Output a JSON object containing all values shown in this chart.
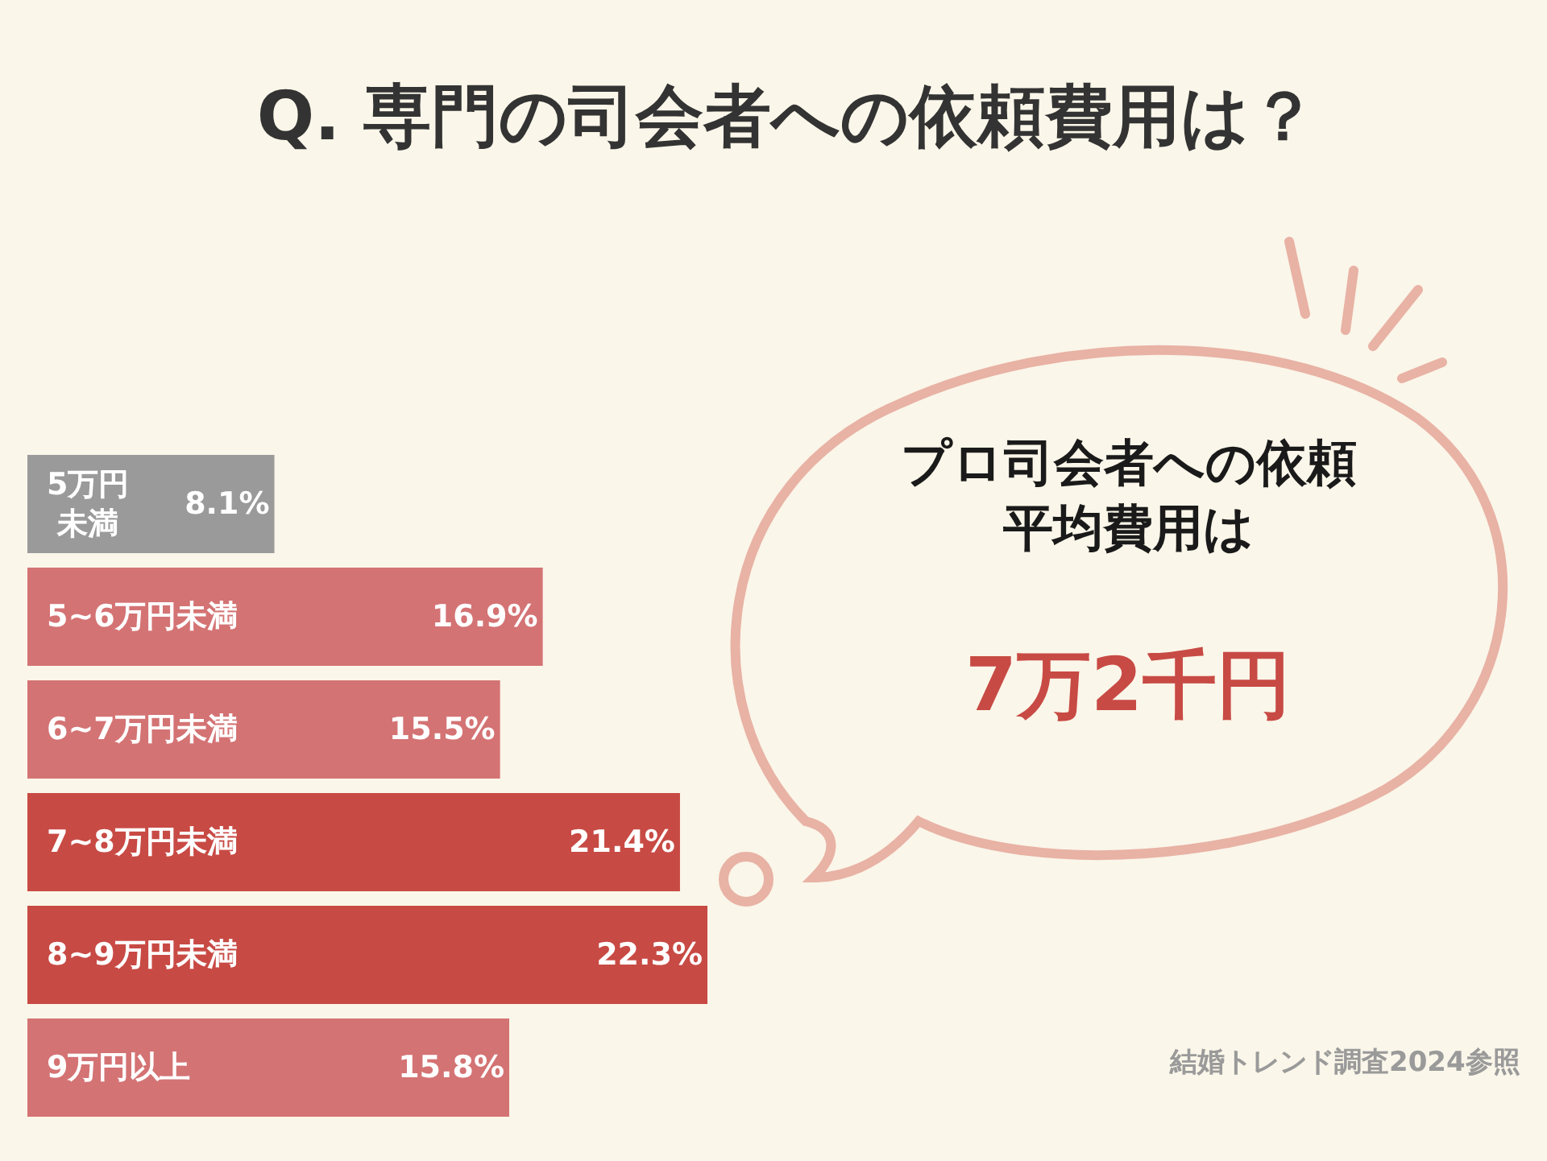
{
  "chart_data": {
    "type": "bar",
    "orientation": "horizontal",
    "title": "Q. 専門の司会者への依頼費用は？",
    "categories": [
      "5万円未満",
      "5~6万円未満",
      "6~7万円未満",
      "7~8万円未満",
      "8~9万円未満",
      "9万円以上"
    ],
    "values": [
      8.1,
      16.9,
      15.5,
      21.4,
      22.3,
      15.8
    ],
    "value_labels": [
      "8.1%",
      "16.9%",
      "15.5%",
      "21.4%",
      "22.3%",
      "15.8%"
    ],
    "colors": [
      "#9a9a9a",
      "#d47374",
      "#d47374",
      "#c84a44",
      "#c84a44",
      "#d47374"
    ],
    "annotations": [
      "プロ司会者への依頼平均費用は",
      "7万2千円",
      "結婚トレンド調査2024参照"
    ],
    "grid": false,
    "tick_labels": false
  }
}
